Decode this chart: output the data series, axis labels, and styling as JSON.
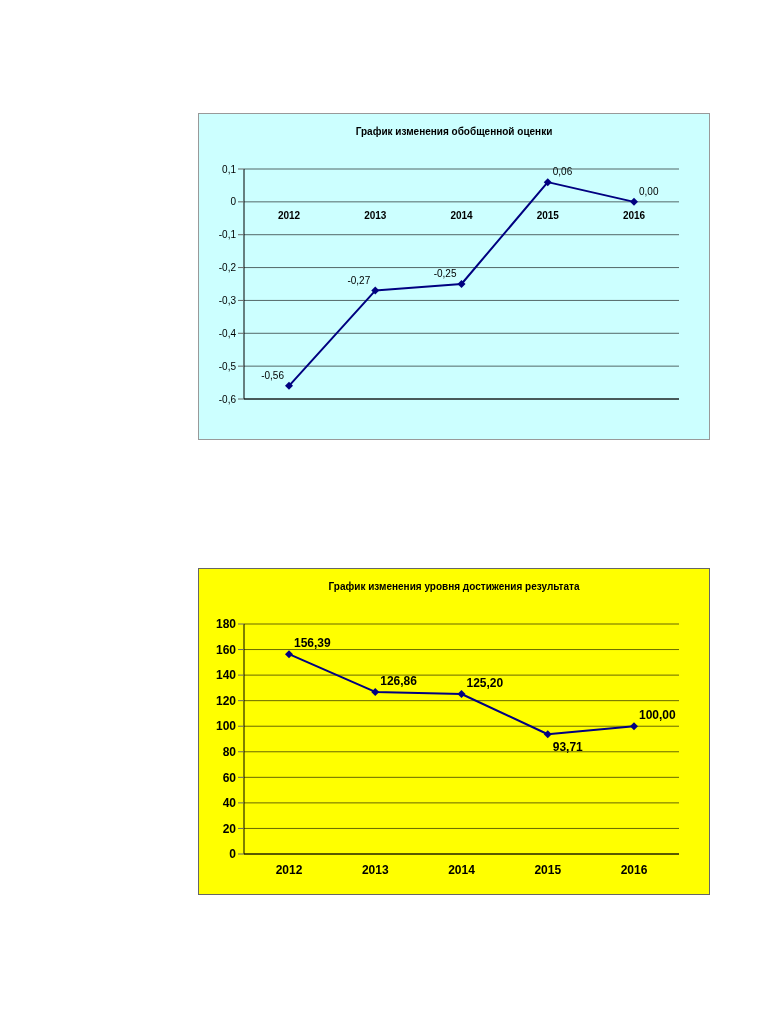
{
  "chart_data": [
    {
      "type": "line",
      "title": "График изменения обобщенной оценки",
      "categories": [
        "2012",
        "2013",
        "2014",
        "2015",
        "2016"
      ],
      "series": [
        {
          "color": "#000080",
          "values": [
            -0.56,
            -0.27,
            -0.25,
            0.06,
            0.0
          ],
          "value_labels": [
            "-0,56",
            "-0,27",
            "-0,25",
            "0,06",
            "0,00"
          ]
        }
      ],
      "ylim": [
        -0.6,
        0.1
      ],
      "yticks": [
        {
          "value": -0.6,
          "label": "-0,6"
        },
        {
          "value": -0.5,
          "label": "-0,5"
        },
        {
          "value": -0.4,
          "label": "-0,4"
        },
        {
          "value": -0.3,
          "label": "-0,3"
        },
        {
          "value": -0.2,
          "label": "-0,2"
        },
        {
          "value": -0.1,
          "label": "-0,1"
        },
        0,
        {
          "value": 0.1,
          "label": "0,1"
        }
      ],
      "grid": "y",
      "marker": "diamond",
      "line_style": "solid"
    },
    {
      "type": "line",
      "title": "График изменения уровня достижения результата",
      "categories": [
        "2012",
        "2013",
        "2014",
        "2015",
        "2016"
      ],
      "series": [
        {
          "color": "#000080",
          "values": [
            156.39,
            126.86,
            125.2,
            93.71,
            100.0
          ],
          "value_labels": [
            "156,39",
            "126,86",
            "125,20",
            "93,71",
            "100,00"
          ]
        }
      ],
      "ylim": [
        0,
        180
      ],
      "yticks": [
        0,
        20,
        40,
        60,
        80,
        100,
        120,
        140,
        160,
        180
      ],
      "grid": "y",
      "marker": "diamond",
      "line_style": "solid"
    }
  ]
}
